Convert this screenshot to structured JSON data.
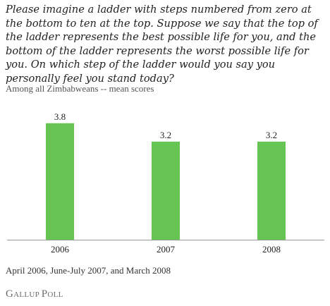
{
  "question": "Please imagine a ladder with steps numbered from zero at the bottom to ten at the top. Suppose we say that the top of the ladder represents the best possible life for you, and the bottom of the ladder represents the worst possible life for you. On which step of the ladder would you say you personally feel you stand today?",
  "subtitle": "Among all Zimbabweans -- mean scores",
  "source": "April 2006, June-July 2007, and March 2008",
  "logo": "Gallup Poll",
  "colors": {
    "bar": "#66c452",
    "axis": "#999999"
  },
  "chart_data": {
    "type": "bar",
    "categories": [
      "2006",
      "2007",
      "2008"
    ],
    "values": [
      3.8,
      3.2,
      3.2
    ],
    "value_labels": [
      "3.8",
      "3.2",
      "3.2"
    ],
    "ylim": [
      0,
      4.6
    ],
    "grid": false,
    "legend": "none"
  }
}
